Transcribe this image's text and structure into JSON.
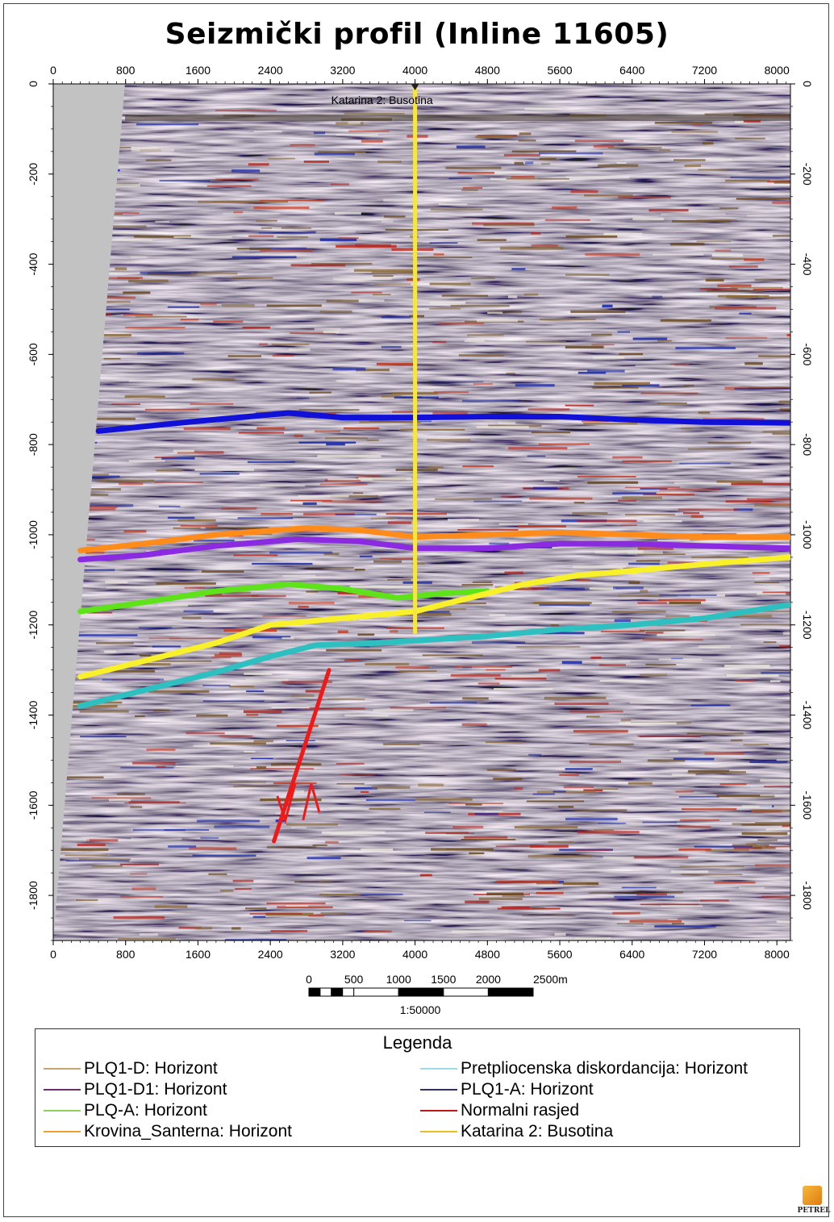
{
  "title": "Seizmički profil (Inline 11605)",
  "chart_data": {
    "type": "seismic-section",
    "x_ticks": [
      0,
      800,
      1600,
      2400,
      3200,
      4000,
      4800,
      5600,
      6400,
      7200,
      8000
    ],
    "y_ticks_left": [
      0,
      -200,
      -400,
      -600,
      -800,
      -1000,
      -1200,
      -1400,
      -1600,
      -1800
    ],
    "y_ticks_right": [
      0,
      -200,
      -400,
      -600,
      -800,
      -1000,
      -1200,
      -1400,
      -1600,
      -1800
    ],
    "xlim": [
      0,
      8150
    ],
    "ylim": [
      0,
      -1900
    ],
    "well": {
      "label": "Katarina 2: Busotina",
      "x": 4000,
      "y_top": 0,
      "y_bottom": -1220,
      "color": "#f5e642"
    },
    "horizons": [
      {
        "name": "PLQ1-A: Horizont",
        "color": "#1010d8",
        "points": [
          [
            500,
            -770
          ],
          [
            1500,
            -750
          ],
          [
            2600,
            -730
          ],
          [
            3200,
            -740
          ],
          [
            4000,
            -740
          ],
          [
            4800,
            -738
          ],
          [
            5600,
            -738
          ],
          [
            6400,
            -745
          ],
          [
            7200,
            -750
          ],
          [
            8150,
            -752
          ]
        ]
      },
      {
        "name": "PLQ1-D: Horizont",
        "color": "#ff8c1a",
        "points": [
          [
            300,
            -1035
          ],
          [
            1000,
            -1020
          ],
          [
            1800,
            -1000
          ],
          [
            2800,
            -985
          ],
          [
            3400,
            -990
          ],
          [
            4000,
            -1005
          ],
          [
            4800,
            -1000
          ],
          [
            5600,
            -995
          ],
          [
            6400,
            -1000
          ],
          [
            7200,
            -1005
          ],
          [
            8150,
            -1005
          ]
        ]
      },
      {
        "name": "PLQ1-D1: Horizont",
        "color": "#8a2be2",
        "points": [
          [
            300,
            -1055
          ],
          [
            1000,
            -1045
          ],
          [
            1800,
            -1025
          ],
          [
            2700,
            -1010
          ],
          [
            3400,
            -1015
          ],
          [
            4000,
            -1030
          ],
          [
            4800,
            -1030
          ],
          [
            5600,
            -1020
          ],
          [
            6400,
            -1020
          ],
          [
            7200,
            -1025
          ],
          [
            8150,
            -1030
          ]
        ]
      },
      {
        "name": "PLQ-A: Horizont",
        "color": "#5ee31a",
        "points": [
          [
            300,
            -1170
          ],
          [
            1000,
            -1150
          ],
          [
            1800,
            -1125
          ],
          [
            2600,
            -1110
          ],
          [
            3200,
            -1120
          ],
          [
            3800,
            -1140
          ],
          [
            4300,
            -1130
          ],
          [
            4800,
            -1125
          ]
        ]
      },
      {
        "name": "Krovina_Santerna: Horizont",
        "color": "#f8f028",
        "points": [
          [
            300,
            -1315
          ],
          [
            1000,
            -1280
          ],
          [
            1800,
            -1240
          ],
          [
            2400,
            -1200
          ],
          [
            3200,
            -1185
          ],
          [
            4000,
            -1170
          ],
          [
            4600,
            -1140
          ],
          [
            5200,
            -1110
          ],
          [
            5800,
            -1090
          ],
          [
            6400,
            -1080
          ],
          [
            7200,
            -1065
          ],
          [
            8150,
            -1050
          ]
        ]
      },
      {
        "name": "Pretpliocenska  diskordancija: Horizont",
        "color": "#2ec0c0",
        "points": [
          [
            300,
            -1380
          ],
          [
            1000,
            -1345
          ],
          [
            1800,
            -1305
          ],
          [
            2400,
            -1270
          ],
          [
            2900,
            -1245
          ],
          [
            3600,
            -1240
          ],
          [
            4000,
            -1235
          ],
          [
            4800,
            -1225
          ],
          [
            5600,
            -1210
          ],
          [
            6400,
            -1200
          ],
          [
            7200,
            -1185
          ],
          [
            8150,
            -1155
          ]
        ]
      }
    ],
    "faults": [
      {
        "name": "Normalni rasjed",
        "color": "#ee1a1a",
        "points": [
          [
            2440,
            -1680
          ],
          [
            3050,
            -1300
          ]
        ]
      }
    ]
  },
  "scale_bar": {
    "labels": [
      "0",
      "500",
      "1000",
      "1500",
      "2000",
      "2500m"
    ],
    "ratio": "1:50000"
  },
  "legend": {
    "title": "Legenda",
    "items": [
      {
        "label": "PLQ1-D: Horizont",
        "color": "#c8a36a"
      },
      {
        "label": "Pretpliocenska  diskordancija: Horizont",
        "color": "#9fd8e8"
      },
      {
        "label": "PLQ1-D1: Horizont",
        "color": "#6b2f6b"
      },
      {
        "label": "PLQ1-A: Horizont",
        "color": "#303060"
      },
      {
        "label": "PLQ-A: Horizont",
        "color": "#8ccf5a"
      },
      {
        "label": "Normalni rasjed",
        "color": "#c01818"
      },
      {
        "label": "Krovina_Santerna: Horizont",
        "color": "#f0a030"
      },
      {
        "label": "Katarina 2: Busotina",
        "color": "#e8c020"
      }
    ]
  },
  "logo": {
    "text": "PETREL"
  }
}
